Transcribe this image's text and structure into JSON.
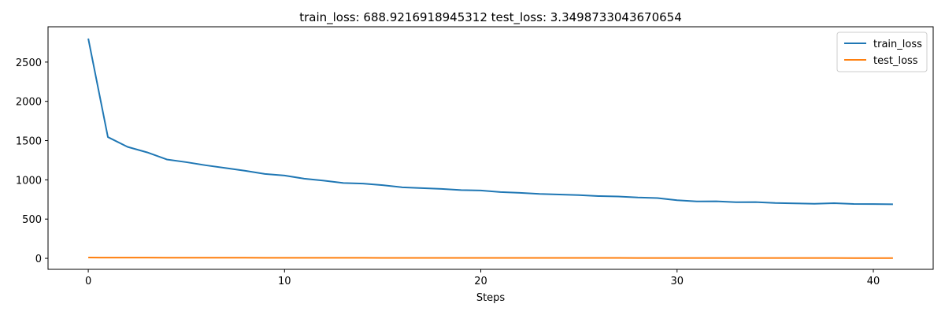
{
  "chart_data": {
    "type": "line",
    "title": "train_loss: 688.9216918945312   test_loss: 3.3498733043670654",
    "xlabel": "Steps",
    "ylabel": "",
    "xlim": [
      -2.05,
      43.05
    ],
    "ylim": [
      -140,
      2950
    ],
    "xticks": [
      0,
      10,
      20,
      30,
      40
    ],
    "yticks": [
      0,
      500,
      1000,
      1500,
      2000,
      2500
    ],
    "grid": false,
    "legend_position": "top-right",
    "x": [
      0,
      1,
      2,
      3,
      4,
      5,
      6,
      7,
      8,
      9,
      10,
      11,
      12,
      13,
      14,
      15,
      16,
      17,
      18,
      19,
      20,
      21,
      22,
      23,
      24,
      25,
      26,
      27,
      28,
      29,
      30,
      31,
      32,
      33,
      34,
      35,
      36,
      37,
      38,
      39,
      40,
      41
    ],
    "series": [
      {
        "name": "train_loss",
        "color": "#1f77b4",
        "values": [
          2800,
          1545,
          1420,
          1350,
          1260,
          1225,
          1185,
          1150,
          1115,
          1075,
          1055,
          1015,
          990,
          960,
          952,
          932,
          905,
          895,
          885,
          870,
          865,
          845,
          835,
          820,
          813,
          805,
          793,
          788,
          775,
          768,
          740,
          725,
          727,
          715,
          717,
          705,
          700,
          695,
          703,
          693,
          691,
          689
        ]
      },
      {
        "name": "test_loss",
        "color": "#ff7f0e",
        "values": [
          10,
          9.5,
          9.2,
          8.9,
          8.6,
          8.3,
          8.0,
          7.7,
          7.4,
          7.2,
          7.0,
          6.8,
          6.6,
          6.4,
          6.3,
          6.1,
          6.0,
          5.9,
          5.8,
          5.7,
          5.6,
          5.5,
          5.4,
          5.3,
          5.2,
          5.1,
          5.0,
          4.9,
          4.8,
          4.7,
          4.6,
          4.5,
          4.4,
          4.3,
          4.2,
          4.1,
          4.0,
          3.9,
          3.7,
          3.6,
          3.45,
          3.35
        ]
      }
    ]
  }
}
